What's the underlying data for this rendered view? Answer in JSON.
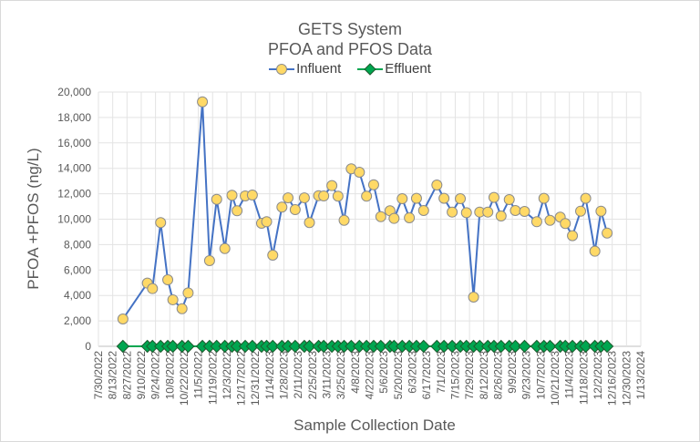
{
  "chart_data": {
    "type": "line",
    "title": "GETS System",
    "subtitle": "PFOA and PFOS Data",
    "xlabel": "Sample Collection Date",
    "ylabel": "PFOA +PFOS (ng/L)",
    "ylim": [
      0,
      20000
    ],
    "yticks": [
      0,
      2000,
      4000,
      6000,
      8000,
      10000,
      12000,
      14000,
      16000,
      18000,
      20000
    ],
    "ytick_labels": [
      "0",
      "2,000",
      "4,000",
      "6,000",
      "8,000",
      "10,000",
      "12,000",
      "14,000",
      "16,000",
      "18,000",
      "20,000"
    ],
    "xlim": [
      "2022-07-30",
      "2024-01-13"
    ],
    "xtick_labels": [
      "7/30/2022",
      "8/13/2022",
      "8/27/2022",
      "9/10/2022",
      "9/24/2022",
      "10/8/2022",
      "10/22/2022",
      "11/5/2022",
      "11/19/2022",
      "12/3/2022",
      "12/17/2022",
      "12/31/2022",
      "1/14/2023",
      "1/28/2023",
      "2/11/2023",
      "2/25/2023",
      "3/11/2023",
      "3/25/2023",
      "4/8/2023",
      "4/22/2023",
      "5/6/2023",
      "5/20/2023",
      "6/3/2023",
      "6/17/2023",
      "7/1/2023",
      "7/15/2023",
      "7/29/2023",
      "8/12/2023",
      "8/26/2023",
      "9/9/2023",
      "9/23/2023",
      "10/7/2023",
      "10/21/2023",
      "11/4/2023",
      "11/18/2023",
      "12/2/2023",
      "12/16/2023",
      "12/30/2023",
      "1/13/2024"
    ],
    "grid": true,
    "legend_position": "top",
    "x": [
      "2022-08-23",
      "2022-09-16",
      "2022-09-21",
      "2022-09-29",
      "2022-10-06",
      "2022-10-11",
      "2022-10-20",
      "2022-10-26",
      "2022-11-09",
      "2022-11-16",
      "2022-11-23",
      "2022-12-01",
      "2022-12-08",
      "2022-12-13",
      "2022-12-21",
      "2022-12-28",
      "2023-01-06",
      "2023-01-11",
      "2023-01-17",
      "2023-01-26",
      "2023-02-01",
      "2023-02-08",
      "2023-02-17",
      "2023-02-22",
      "2023-03-03",
      "2023-03-08",
      "2023-03-16",
      "2023-03-22",
      "2023-03-28",
      "2023-04-04",
      "2023-04-12",
      "2023-04-19",
      "2023-04-26",
      "2023-05-03",
      "2023-05-12",
      "2023-05-16",
      "2023-05-24",
      "2023-05-31",
      "2023-06-07",
      "2023-06-14",
      "2023-06-27",
      "2023-07-04",
      "2023-07-12",
      "2023-07-20",
      "2023-07-26",
      "2023-08-02",
      "2023-08-08",
      "2023-08-16",
      "2023-08-22",
      "2023-08-29",
      "2023-09-06",
      "2023-09-12",
      "2023-09-21",
      "2023-10-03",
      "2023-10-10",
      "2023-10-16",
      "2023-10-26",
      "2023-10-31",
      "2023-11-07",
      "2023-11-15",
      "2023-11-20",
      "2023-11-29",
      "2023-12-05",
      "2023-12-11"
    ],
    "series": [
      {
        "name": "Influent",
        "color": "#4472c4",
        "marker": "circle",
        "marker_color": "#ffd966",
        "values": [
          2150,
          4970,
          4540,
          9730,
          5230,
          3660,
          2960,
          4200,
          19230,
          6740,
          11560,
          7690,
          11880,
          10660,
          11830,
          11900,
          9680,
          9800,
          7170,
          10950,
          11680,
          10750,
          11680,
          9730,
          11850,
          11830,
          12640,
          11810,
          9910,
          13960,
          13690,
          11810,
          12710,
          10200,
          10660,
          10060,
          11610,
          10110,
          11640,
          10680,
          12690,
          11640,
          10560,
          11610,
          10510,
          3870,
          10560,
          10560,
          11710,
          10250,
          11540,
          10680,
          10610,
          9800,
          11640,
          9910,
          10160,
          9660,
          8700,
          10630,
          11640,
          7480,
          10630,
          8910
        ]
      },
      {
        "name": "Effluent",
        "color": "#00a650",
        "marker": "diamond",
        "values": [
          0,
          0,
          0,
          0,
          0,
          0,
          0,
          0,
          0,
          0,
          0,
          0,
          0,
          0,
          0,
          0,
          0,
          0,
          0,
          0,
          0,
          0,
          0,
          0,
          0,
          0,
          0,
          0,
          0,
          0,
          0,
          0,
          0,
          0,
          0,
          0,
          0,
          0,
          0,
          0,
          0,
          0,
          0,
          0,
          0,
          0,
          0,
          0,
          0,
          0,
          0,
          0,
          0,
          0,
          0,
          0,
          0,
          0,
          0,
          0,
          0,
          0,
          0,
          0
        ]
      }
    ]
  }
}
